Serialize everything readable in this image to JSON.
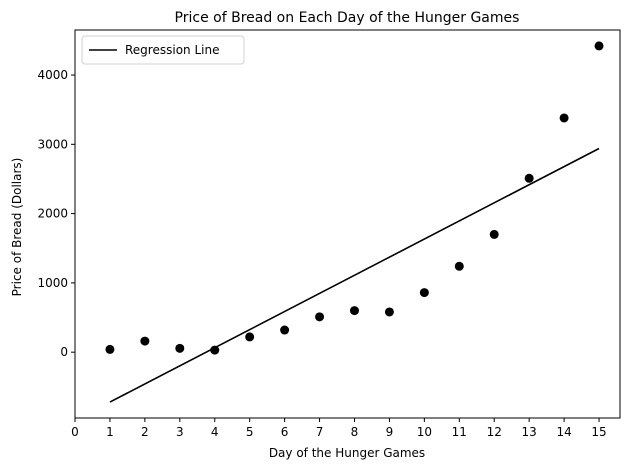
{
  "chart_data": {
    "type": "scatter",
    "title": "Price of Bread on Each Day of the Hunger Games",
    "xlabel": "Day of the Hunger Games",
    "ylabel": "Price of Bread (Dollars)",
    "xlim": [
      0,
      15.6
    ],
    "ylim": [
      -950,
      4650
    ],
    "xticks": [
      0,
      1,
      2,
      3,
      4,
      5,
      6,
      7,
      8,
      9,
      10,
      11,
      12,
      13,
      14,
      15
    ],
    "yticks": [
      0,
      1000,
      2000,
      3000,
      4000
    ],
    "grid": false,
    "legend": {
      "placement": "top-left",
      "entries": [
        "Regression Line"
      ]
    },
    "points": {
      "color": "#000000",
      "x": [
        1,
        2,
        3,
        4,
        5,
        6,
        7,
        8,
        9,
        10,
        11,
        12,
        13,
        14,
        15
      ],
      "y": [
        40,
        160,
        55,
        30,
        220,
        320,
        510,
        600,
        580,
        860,
        1240,
        1700,
        2510,
        3380,
        4420
      ]
    },
    "regression_line": {
      "name": "Regression Line",
      "color": "#000000",
      "x": [
        1,
        15
      ],
      "y": [
        -720,
        2940
      ]
    }
  }
}
